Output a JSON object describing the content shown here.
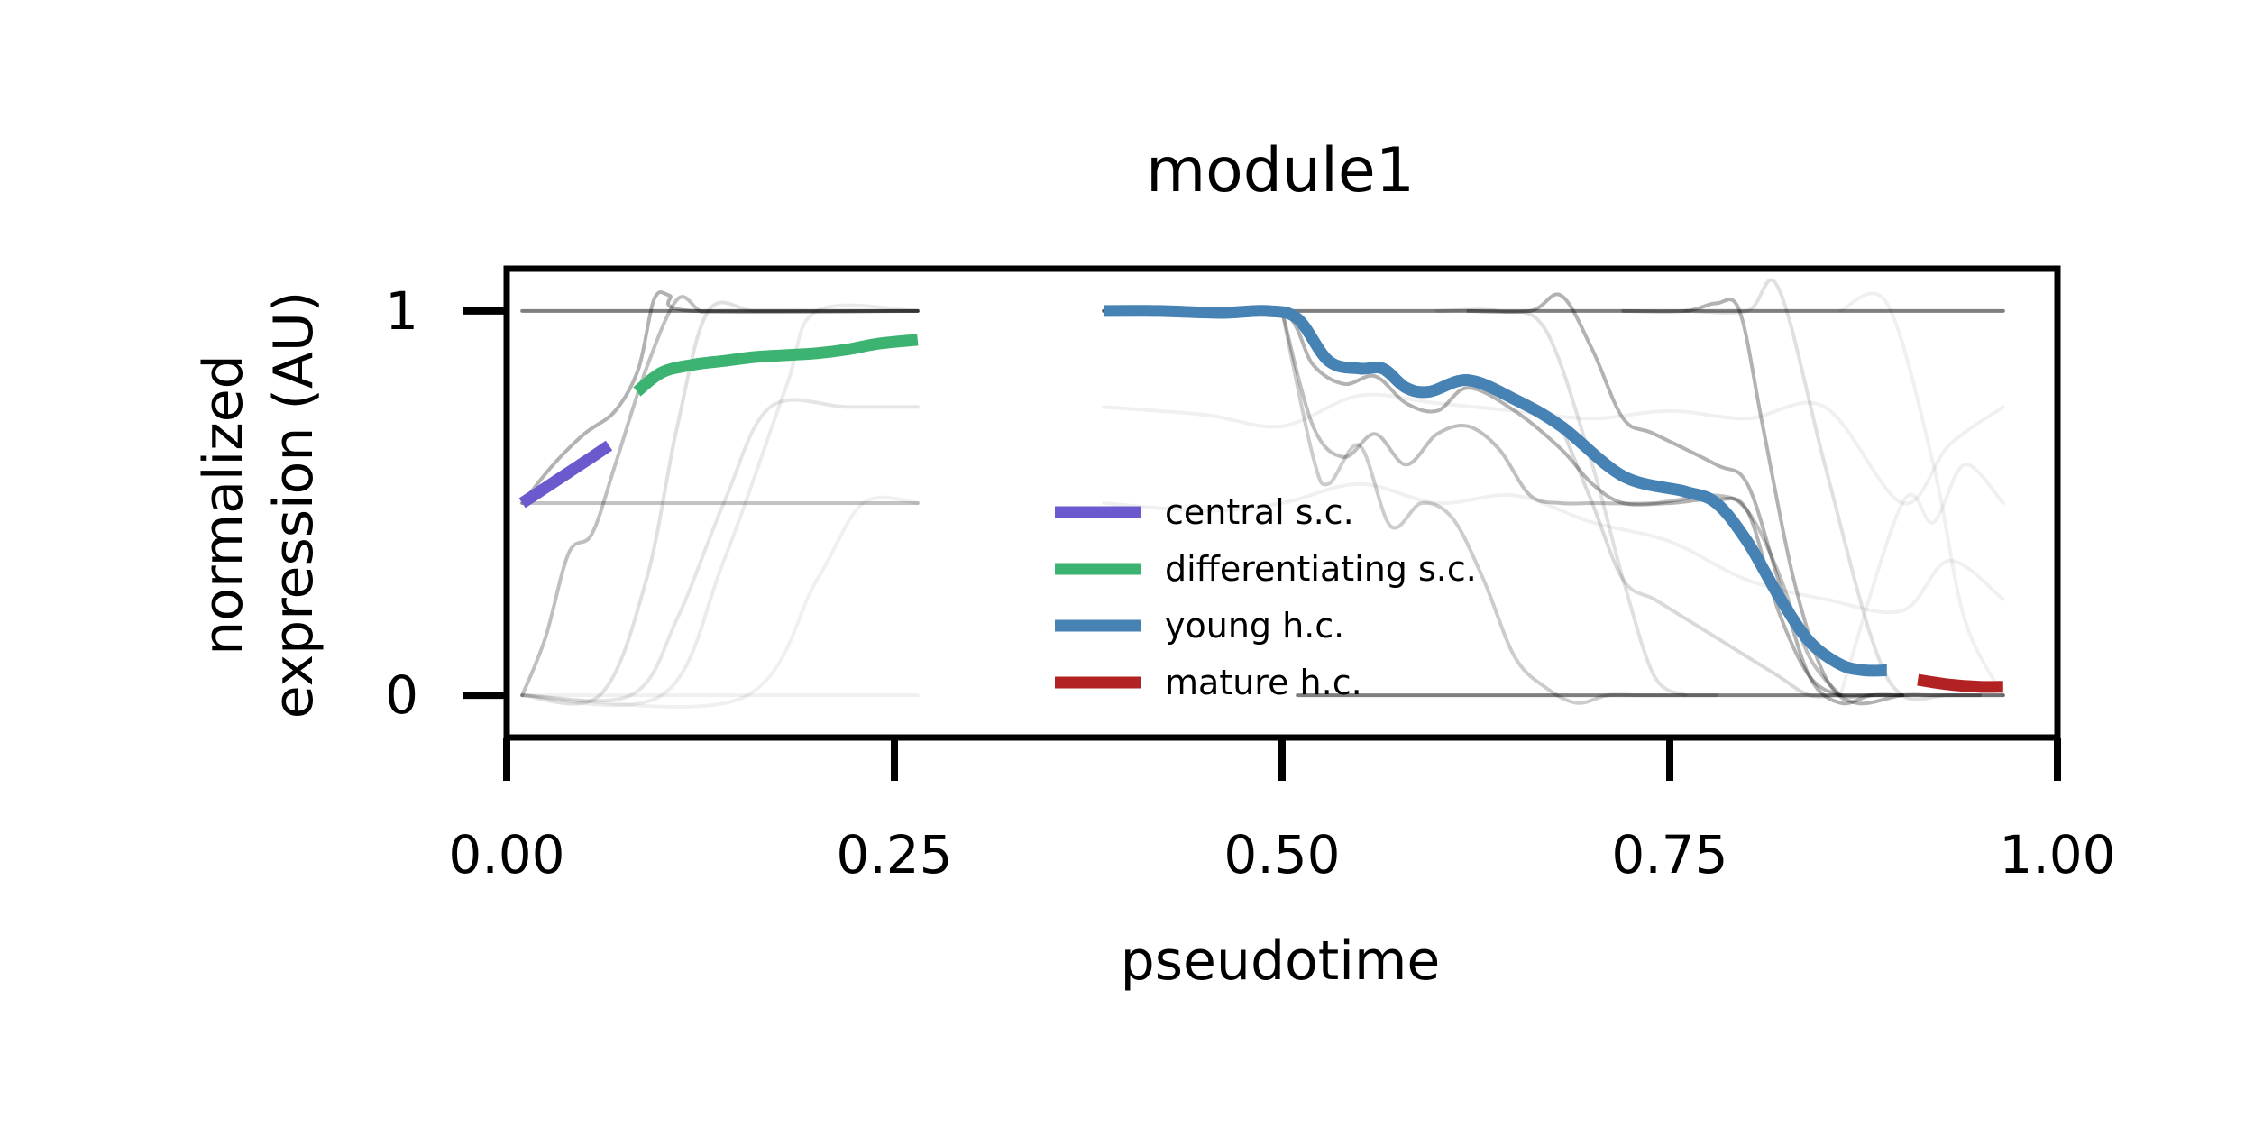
{
  "chart_data": {
    "type": "line",
    "title": "module1",
    "xlabel": "pseudotime",
    "ylabel_lines": [
      "normalized",
      "expression (AU)"
    ],
    "xlim": [
      0.0,
      1.0
    ],
    "ylim": [
      -0.11,
      1.11
    ],
    "xticks": [
      {
        "value": 0.0,
        "label": "0.00"
      },
      {
        "value": 0.25,
        "label": "0.25"
      },
      {
        "value": 0.5,
        "label": "0.50"
      },
      {
        "value": 0.75,
        "label": "0.75"
      },
      {
        "value": 1.0,
        "label": "1.00"
      }
    ],
    "yticks": [
      {
        "value": 0,
        "label": "0"
      },
      {
        "value": 1,
        "label": "1"
      }
    ],
    "grid": false,
    "legend_position": "center",
    "series": [
      {
        "name": "central s.c.",
        "color": "#6a5acd",
        "x": [
          0.01,
          0.025,
          0.04,
          0.055,
          0.066
        ],
        "y": [
          0.5,
          0.54,
          0.58,
          0.62,
          0.65
        ]
      },
      {
        "name": "differentiating s.c.",
        "color": "#3cb371",
        "x": [
          0.084,
          0.1,
          0.12,
          0.14,
          0.16,
          0.18,
          0.2,
          0.22,
          0.24,
          0.265
        ],
        "y": [
          0.79,
          0.84,
          0.86,
          0.87,
          0.88,
          0.885,
          0.89,
          0.9,
          0.915,
          0.925
        ]
      },
      {
        "name": "young h.c.",
        "color": "#4682b4",
        "x": [
          0.385,
          0.42,
          0.46,
          0.49,
          0.51,
          0.53,
          0.55,
          0.565,
          0.58,
          0.595,
          0.62,
          0.65,
          0.68,
          0.72,
          0.76,
          0.78,
          0.8,
          0.82,
          0.84,
          0.86,
          0.875,
          0.89
        ],
        "y": [
          1.0,
          1.0,
          0.995,
          1.0,
          0.98,
          0.87,
          0.85,
          0.85,
          0.8,
          0.79,
          0.82,
          0.77,
          0.7,
          0.57,
          0.53,
          0.5,
          0.4,
          0.26,
          0.14,
          0.08,
          0.065,
          0.065
        ]
      },
      {
        "name": "mature h.c.",
        "color": "#b22222",
        "x": [
          0.91,
          0.93,
          0.95,
          0.965
        ],
        "y": [
          0.04,
          0.028,
          0.022,
          0.022
        ]
      }
    ],
    "background_traces": {
      "color": "#000000",
      "lines": [
        {
          "opacity": 0.5,
          "x": [
            0.01,
            0.265
          ],
          "y": [
            1.0,
            1.0
          ]
        },
        {
          "opacity": 0.5,
          "x": [
            0.385,
            0.965
          ],
          "y": [
            1.0,
            1.0
          ]
        },
        {
          "opacity": 0.5,
          "x": [
            0.51,
            0.965
          ],
          "y": [
            0.0,
            0.0
          ]
        },
        {
          "opacity": 0.1,
          "x": [
            0.01,
            0.265
          ],
          "y": [
            0.5,
            0.5
          ]
        },
        {
          "opacity": 0.06,
          "x": [
            0.01,
            0.265
          ],
          "y": [
            0.0,
            0.0
          ]
        },
        {
          "opacity": 0.3,
          "x": [
            0.01,
            0.03,
            0.05,
            0.07,
            0.085,
            0.095,
            0.105,
            0.12,
            0.265
          ],
          "y": [
            0.5,
            0.6,
            0.68,
            0.74,
            0.85,
            1.03,
            1.04,
            1.0,
            1.0
          ]
        },
        {
          "opacity": 0.25,
          "x": [
            0.01,
            0.025,
            0.04,
            0.055,
            0.07,
            0.09,
            0.11,
            0.125,
            0.14,
            0.265
          ],
          "y": [
            0.0,
            0.15,
            0.37,
            0.42,
            0.6,
            0.85,
            1.03,
            1.0,
            1.0,
            1.0
          ]
        },
        {
          "opacity": 0.15,
          "x": [
            0.01,
            0.03,
            0.06,
            0.1,
            0.14,
            0.18,
            0.21,
            0.24,
            0.265
          ],
          "y": [
            0.5,
            0.5,
            0.5,
            0.5,
            0.5,
            0.5,
            0.5,
            0.5,
            0.5
          ]
        },
        {
          "opacity": 0.12,
          "x": [
            0.01,
            0.06,
            0.09,
            0.11,
            0.13,
            0.16,
            0.2,
            0.265
          ],
          "y": [
            0.0,
            0.0,
            0.3,
            0.7,
            1.0,
            1.0,
            1.0,
            1.0
          ]
        },
        {
          "opacity": 0.1,
          "x": [
            0.01,
            0.08,
            0.11,
            0.14,
            0.17,
            0.22,
            0.265
          ],
          "y": [
            0.0,
            0.0,
            0.2,
            0.5,
            0.75,
            0.75,
            0.75
          ]
        },
        {
          "opacity": 0.08,
          "x": [
            0.01,
            0.1,
            0.14,
            0.18,
            0.2,
            0.265
          ],
          "y": [
            0.0,
            0.0,
            0.35,
            0.8,
            1.0,
            1.0
          ]
        },
        {
          "opacity": 0.06,
          "x": [
            0.01,
            0.15,
            0.2,
            0.23,
            0.265
          ],
          "y": [
            0.0,
            -0.01,
            0.3,
            0.5,
            0.5
          ]
        },
        {
          "opacity": 0.3,
          "x": [
            0.385,
            0.45,
            0.5,
            0.52,
            0.54,
            0.56,
            0.58,
            0.6,
            0.62,
            0.65,
            0.68,
            0.7,
            0.72,
            0.75,
            0.78,
            0.8,
            0.82,
            0.84,
            0.86,
            0.88,
            0.9
          ],
          "y": [
            1.0,
            1.0,
            1.0,
            0.86,
            0.81,
            0.83,
            0.76,
            0.74,
            0.8,
            0.74,
            0.64,
            0.55,
            0.5,
            0.5,
            0.51,
            0.48,
            0.22,
            0.05,
            0.0,
            0.0,
            0.0
          ]
        },
        {
          "opacity": 0.25,
          "x": [
            0.5,
            0.52,
            0.54,
            0.56,
            0.58,
            0.6,
            0.62,
            0.64,
            0.66,
            0.68,
            0.7,
            0.74,
            0.78,
            0.8,
            0.82,
            0.84,
            0.86
          ],
          "y": [
            1.0,
            0.7,
            0.62,
            0.68,
            0.6,
            0.68,
            0.7,
            0.64,
            0.52,
            0.5,
            0.5,
            0.5,
            0.52,
            0.48,
            0.32,
            0.1,
            0.0
          ]
        },
        {
          "opacity": 0.2,
          "x": [
            0.5,
            0.52,
            0.53,
            0.55,
            0.57,
            0.59,
            0.61,
            0.63,
            0.65,
            0.67,
            0.69,
            0.71,
            0.73,
            0.75,
            0.78
          ],
          "y": [
            1.0,
            0.62,
            0.55,
            0.65,
            0.44,
            0.5,
            0.46,
            0.3,
            0.1,
            0.02,
            -0.02,
            0.0,
            0.0,
            0.0,
            0.0
          ]
        },
        {
          "opacity": 0.3,
          "x": [
            0.62,
            0.66,
            0.68,
            0.7,
            0.72,
            0.74,
            0.78,
            0.8,
            0.82,
            0.84,
            0.86,
            0.88,
            0.9
          ],
          "y": [
            1.0,
            1.0,
            1.04,
            0.9,
            0.72,
            0.68,
            0.6,
            0.55,
            0.3,
            0.05,
            -0.02,
            0.0,
            0.0
          ]
        },
        {
          "opacity": 0.3,
          "x": [
            0.72,
            0.76,
            0.78,
            0.795,
            0.81,
            0.83,
            0.85,
            0.87,
            0.9,
            0.92,
            0.95
          ],
          "y": [
            1.0,
            1.0,
            1.02,
            1.0,
            0.7,
            0.3,
            0.05,
            -0.02,
            0.0,
            0.0,
            0.0
          ]
        },
        {
          "opacity": 0.15,
          "x": [
            0.68,
            0.7,
            0.72,
            0.74,
            0.76,
            0.78,
            0.8,
            0.82,
            0.84,
            0.86,
            0.88
          ],
          "y": [
            0.7,
            0.5,
            0.3,
            0.25,
            0.2,
            0.15,
            0.1,
            0.05,
            0.0,
            0.0,
            0.0
          ]
        },
        {
          "opacity": 0.12,
          "x": [
            0.6,
            0.64,
            0.67,
            0.7,
            0.72,
            0.74,
            0.76
          ],
          "y": [
            1.0,
            1.0,
            0.95,
            0.6,
            0.3,
            0.05,
            0.0
          ]
        },
        {
          "opacity": 0.12,
          "x": [
            0.76,
            0.8,
            0.82,
            0.85,
            0.88,
            0.9,
            0.93,
            0.965
          ],
          "y": [
            1.0,
            1.0,
            1.06,
            0.6,
            0.15,
            0.0,
            0.0,
            0.0
          ]
        },
        {
          "opacity": 0.06,
          "x": [
            0.385,
            0.45,
            0.5,
            0.55,
            0.6,
            0.65,
            0.7,
            0.75,
            0.8,
            0.85,
            0.9,
            0.93,
            0.965
          ],
          "y": [
            0.75,
            0.73,
            0.7,
            0.78,
            0.76,
            0.74,
            0.72,
            0.74,
            0.72,
            0.75,
            0.5,
            0.65,
            0.75
          ]
        },
        {
          "opacity": 0.06,
          "x": [
            0.385,
            0.45,
            0.5,
            0.55,
            0.6,
            0.65,
            0.7,
            0.75,
            0.8,
            0.85,
            0.9,
            0.93,
            0.965
          ],
          "y": [
            0.5,
            0.48,
            0.5,
            0.55,
            0.5,
            0.52,
            0.45,
            0.4,
            0.3,
            0.25,
            0.22,
            0.35,
            0.25
          ]
        },
        {
          "opacity": 0.06,
          "x": [
            0.86,
            0.9,
            0.92,
            0.94,
            0.965
          ],
          "y": [
            0.0,
            0.5,
            0.45,
            0.6,
            0.5
          ]
        },
        {
          "opacity": 0.06,
          "x": [
            0.86,
            0.89,
            0.92,
            0.94,
            0.965
          ],
          "y": [
            1.0,
            1.02,
            0.6,
            0.2,
            0.0
          ]
        }
      ]
    }
  }
}
